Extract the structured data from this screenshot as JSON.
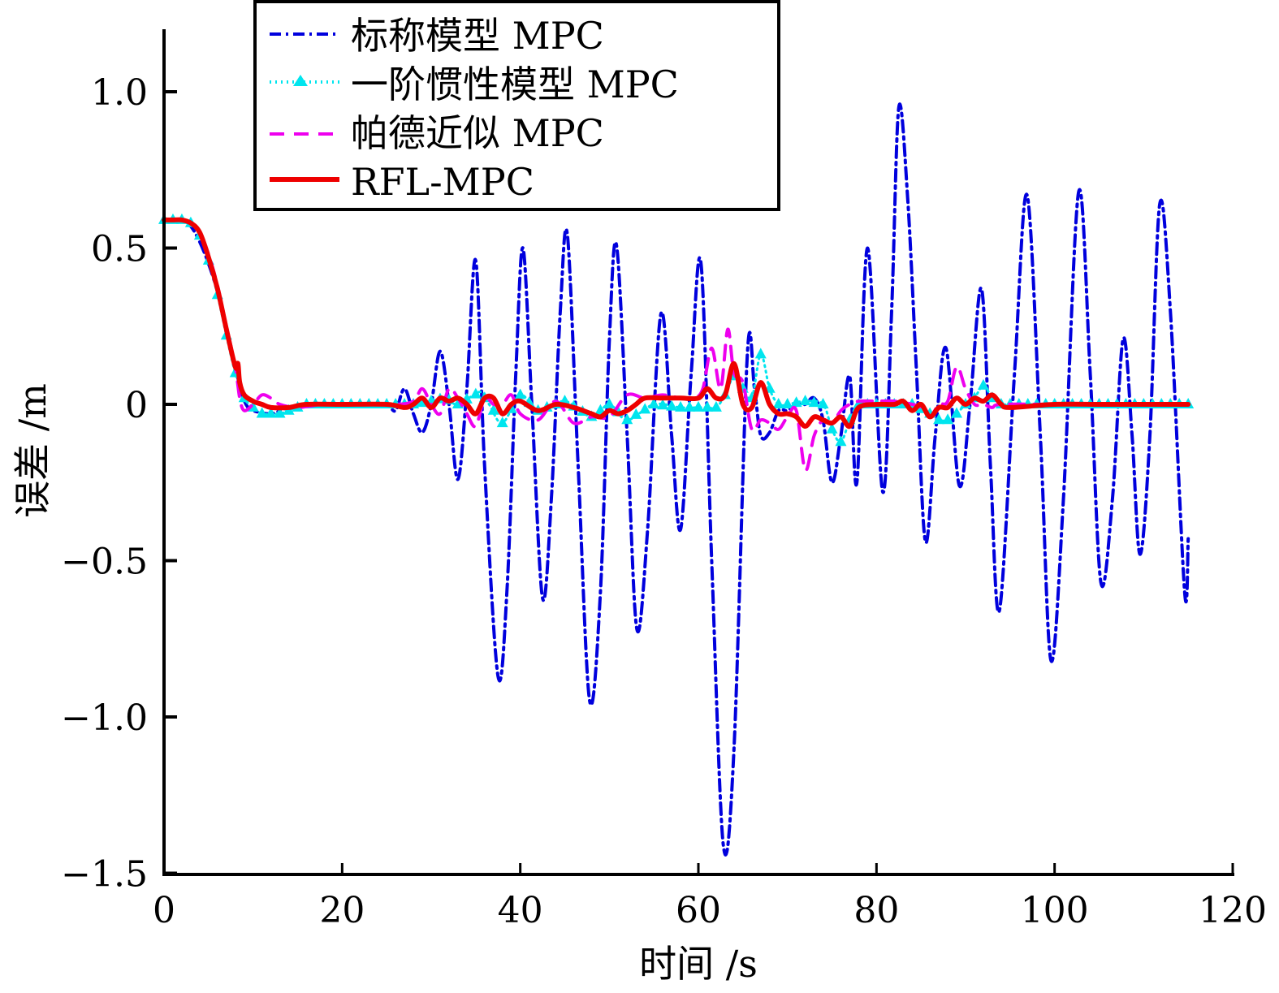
{
  "chart_data": {
    "type": "line",
    "title": "",
    "xlabel": "时间 /s",
    "ylabel": "误差 /m",
    "xlim": [
      0,
      120
    ],
    "ylim": [
      -1.5,
      1.2
    ],
    "xticks": [
      0,
      20,
      40,
      60,
      80,
      100,
      120
    ],
    "xtick_labels": [
      "0",
      "20",
      "40",
      "60",
      "80",
      "100",
      "120"
    ],
    "yticks": [
      1.0,
      0.5,
      0,
      -0.5,
      -1.0,
      -1.5
    ],
    "ytick_labels": [
      "1.0",
      "0.5",
      "0",
      "−0.5",
      "−1.0",
      "−1.5"
    ],
    "grid": false,
    "legend_position": "top-center",
    "series": [
      {
        "name": "标称模型 MPC",
        "color": "#0000dd",
        "style": "dashdot",
        "x": [
          0,
          2,
          3,
          4,
          5,
          6,
          7,
          8,
          8.6,
          9.2,
          10,
          12,
          14,
          17,
          20,
          23,
          25,
          26,
          27,
          28,
          29,
          30,
          31,
          32,
          33,
          34,
          35,
          36,
          37.5,
          38.5,
          39.5,
          40.3,
          41.3,
          42.5,
          43.5,
          44.5,
          45.3,
          46.5,
          47.8,
          49,
          50,
          50.8,
          52,
          53.1,
          54.3,
          55.8,
          57,
          58,
          59.2,
          60.3,
          61.5,
          62.8,
          64,
          65.5,
          66.3,
          67,
          68,
          69,
          70,
          71,
          72,
          73,
          74,
          75,
          76,
          77,
          77.8,
          79,
          80.7,
          81.7,
          82.5,
          83.5,
          84.5,
          85.5,
          86.6,
          87.8,
          89.3,
          90.5,
          91.8,
          92.8,
          93.8,
          95.5,
          96.9,
          98.4,
          99.6,
          101,
          102.7,
          104,
          105.2,
          106.5,
          107.7,
          108.7,
          109.6,
          110.7,
          111.8,
          113,
          114.6,
          115
        ],
        "y": [
          0.59,
          0.59,
          0.57,
          0.52,
          0.45,
          0.36,
          0.24,
          0.12,
          0.05,
          0.0,
          -0.02,
          -0.03,
          -0.01,
          0.0,
          0.0,
          0.0,
          0.0,
          -0.02,
          0.05,
          -0.03,
          -0.09,
          0.0,
          0.17,
          0.0,
          -0.24,
          0.05,
          0.46,
          -0.2,
          -0.87,
          -0.6,
          0.1,
          0.5,
          0.0,
          -0.62,
          -0.3,
          0.3,
          0.54,
          -0.2,
          -0.95,
          -0.6,
          0.2,
          0.51,
          -0.1,
          -0.72,
          -0.4,
          0.29,
          -0.1,
          -0.4,
          0.1,
          0.45,
          -0.5,
          -1.41,
          -1.1,
          0.16,
          0.05,
          -0.1,
          -0.09,
          -0.02,
          -0.02,
          0.0,
          0.0,
          0.02,
          -0.05,
          -0.25,
          -0.1,
          0.09,
          -0.25,
          0.5,
          -0.28,
          0.3,
          0.95,
          0.66,
          0.1,
          -0.44,
          -0.1,
          0.18,
          -0.26,
          0.0,
          0.37,
          -0.2,
          -0.66,
          0.1,
          0.67,
          -0.1,
          -0.82,
          -0.3,
          0.68,
          0.1,
          -0.57,
          -0.3,
          0.21,
          -0.1,
          -0.48,
          -0.1,
          0.64,
          0.3,
          -0.6,
          -0.43
        ]
      },
      {
        "name": "一阶惯性模型 MPC",
        "color": "#00e5ee",
        "style": "dotted-triangle",
        "x": [
          0,
          2,
          3,
          4,
          5,
          6,
          7,
          8,
          9,
          10,
          11,
          12,
          13,
          14,
          16,
          20,
          25,
          28,
          30,
          31.5,
          33,
          35.5,
          36.5,
          38,
          40,
          42,
          45,
          48,
          50,
          52,
          55,
          58,
          60,
          61,
          62,
          63,
          64,
          65,
          66,
          67,
          68,
          69,
          70,
          72,
          74,
          75,
          76,
          77,
          78,
          80,
          82,
          84,
          86,
          87,
          88,
          89,
          90,
          91,
          92,
          93,
          94,
          95,
          100,
          105,
          110,
          115
        ],
        "y": [
          0.59,
          0.59,
          0.58,
          0.54,
          0.46,
          0.35,
          0.22,
          0.1,
          0.02,
          -0.01,
          -0.03,
          -0.03,
          -0.03,
          -0.02,
          0.0,
          0.0,
          0.0,
          0.0,
          0.01,
          0.02,
          0.0,
          0.04,
          0.0,
          -0.06,
          0.03,
          -0.02,
          0.01,
          -0.04,
          0.0,
          -0.05,
          0.0,
          -0.01,
          -0.01,
          -0.01,
          -0.01,
          0.03,
          0.09,
          0.05,
          0.02,
          0.16,
          0.05,
          0.0,
          0.0,
          0.01,
          0.0,
          -0.08,
          -0.12,
          -0.05,
          0.0,
          0.0,
          0.0,
          0.0,
          -0.03,
          -0.05,
          -0.05,
          -0.03,
          0.0,
          0.02,
          0.06,
          0.02,
          0.0,
          0.0,
          0.0,
          0.0,
          0.0,
          0.0
        ]
      },
      {
        "name": "帕德近似 MPC",
        "color": "#ee00ee",
        "style": "dashed",
        "x": [
          0,
          2,
          3,
          4,
          5,
          6,
          7,
          8,
          8.5,
          9,
          10,
          11,
          12,
          13,
          15,
          18,
          22,
          26,
          28,
          29,
          30,
          31,
          32,
          33,
          34,
          35,
          36,
          37,
          38,
          39,
          40,
          42,
          44,
          46,
          48,
          50,
          52,
          54,
          56,
          58,
          59.5,
          60.5,
          61.5,
          62.5,
          63.3,
          64,
          65,
          66,
          67,
          68,
          69,
          70,
          71,
          72,
          73,
          74,
          75,
          76,
          77,
          78,
          80,
          82,
          84,
          85,
          86,
          87,
          88,
          89,
          90,
          91,
          92,
          93,
          94,
          100,
          105,
          110,
          115
        ],
        "y": [
          0.59,
          0.59,
          0.58,
          0.55,
          0.48,
          0.38,
          0.25,
          0.12,
          0.02,
          -0.02,
          0.0,
          0.03,
          0.02,
          0.0,
          -0.01,
          0.0,
          0.0,
          0.0,
          0.01,
          0.05,
          0.0,
          -0.03,
          0.05,
          0.02,
          -0.03,
          -0.07,
          0.02,
          0.0,
          0.0,
          0.03,
          -0.03,
          -0.05,
          0.01,
          -0.06,
          -0.04,
          -0.04,
          0.03,
          0.02,
          0.03,
          0.02,
          0.02,
          0.05,
          0.18,
          0.05,
          0.24,
          0.1,
          0.07,
          -0.08,
          -0.05,
          -0.06,
          -0.08,
          -0.04,
          -0.02,
          -0.21,
          -0.1,
          -0.05,
          -0.06,
          -0.02,
          0.0,
          0.01,
          0.01,
          0.01,
          0.0,
          -0.01,
          -0.04,
          0.0,
          0.01,
          0.12,
          0.05,
          0.0,
          0.0,
          -0.01,
          0.0,
          0.0,
          0.0,
          0.0,
          0.0
        ]
      },
      {
        "name": "RFL-MPC",
        "color": "#ee0000",
        "style": "solid",
        "x": [
          0,
          1,
          2,
          3,
          4,
          5,
          6,
          7,
          8,
          8.3,
          8.5,
          9,
          10,
          11,
          12,
          14,
          16,
          20,
          25,
          27,
          28,
          29,
          30,
          31,
          32,
          33,
          34,
          35,
          36,
          37,
          38,
          39,
          40,
          42,
          44,
          46,
          48,
          49,
          50,
          51,
          52,
          53,
          54,
          56,
          58,
          60,
          61,
          62,
          63,
          64,
          65,
          66,
          67,
          68,
          69,
          70,
          71,
          72,
          73,
          74,
          75,
          76,
          77,
          78,
          80,
          82,
          83,
          84,
          85,
          86,
          87,
          88,
          89,
          90,
          91,
          92,
          93,
          94,
          95,
          100,
          105,
          110,
          115
        ],
        "y": [
          0.59,
          0.59,
          0.59,
          0.58,
          0.55,
          0.47,
          0.37,
          0.24,
          0.12,
          0.13,
          0.07,
          0.03,
          0.01,
          0.0,
          -0.01,
          -0.01,
          0.0,
          0.0,
          0.0,
          -0.01,
          0.0,
          0.02,
          -0.01,
          0.02,
          0.01,
          0.02,
          0.0,
          -0.03,
          0.02,
          0.02,
          -0.03,
          0.0,
          0.01,
          -0.02,
          0.0,
          -0.01,
          -0.03,
          -0.04,
          -0.02,
          -0.03,
          -0.02,
          0.0,
          0.02,
          0.02,
          0.02,
          0.02,
          0.05,
          0.02,
          0.03,
          0.13,
          0.0,
          -0.01,
          0.07,
          0.0,
          -0.03,
          -0.03,
          -0.04,
          -0.07,
          -0.04,
          -0.05,
          -0.06,
          -0.04,
          -0.07,
          -0.01,
          0.0,
          0.0,
          0.01,
          -0.02,
          0.0,
          -0.04,
          -0.01,
          -0.01,
          0.02,
          0.0,
          0.02,
          0.01,
          0.03,
          0.0,
          -0.01,
          0.0,
          0.0,
          0.0,
          0.0
        ]
      }
    ]
  }
}
